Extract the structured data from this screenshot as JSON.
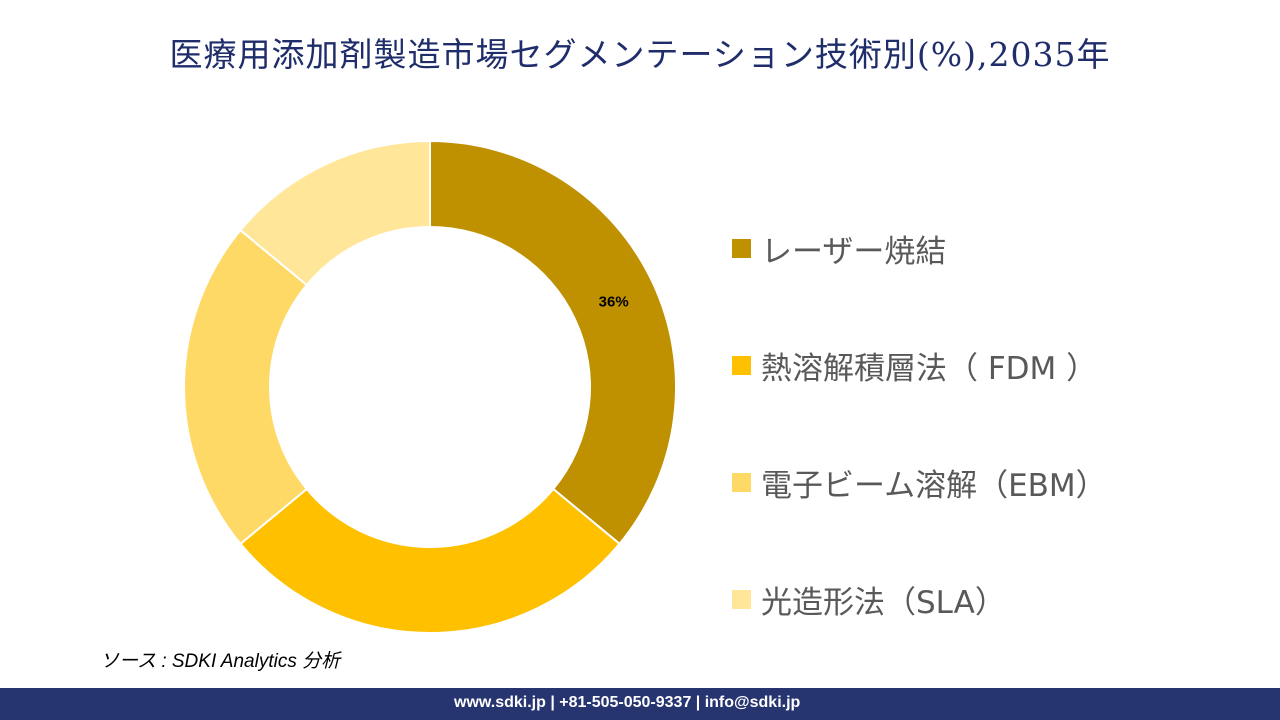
{
  "title": "医療用添加剤製造市場セグメンテーション技術別(%),2035年",
  "chart_data": {
    "type": "pie",
    "donut": true,
    "categories": [
      "レーザー焼結",
      "熱溶解積層法（ FDM ）",
      "電子ビーム溶解（EBM）",
      "光造形法（SLA）"
    ],
    "values": [
      36,
      28,
      22,
      14
    ],
    "data_labels": [
      "36%",
      "",
      "",
      ""
    ],
    "colors": [
      "#BF9000",
      "#FFC000",
      "#FFD966",
      "#FFE699"
    ],
    "legend_position": "right"
  },
  "source": "ソース : SDKI Analytics 分析",
  "footer": "www.sdki.jp | +81-505-050-9337 | info@sdki.jp"
}
